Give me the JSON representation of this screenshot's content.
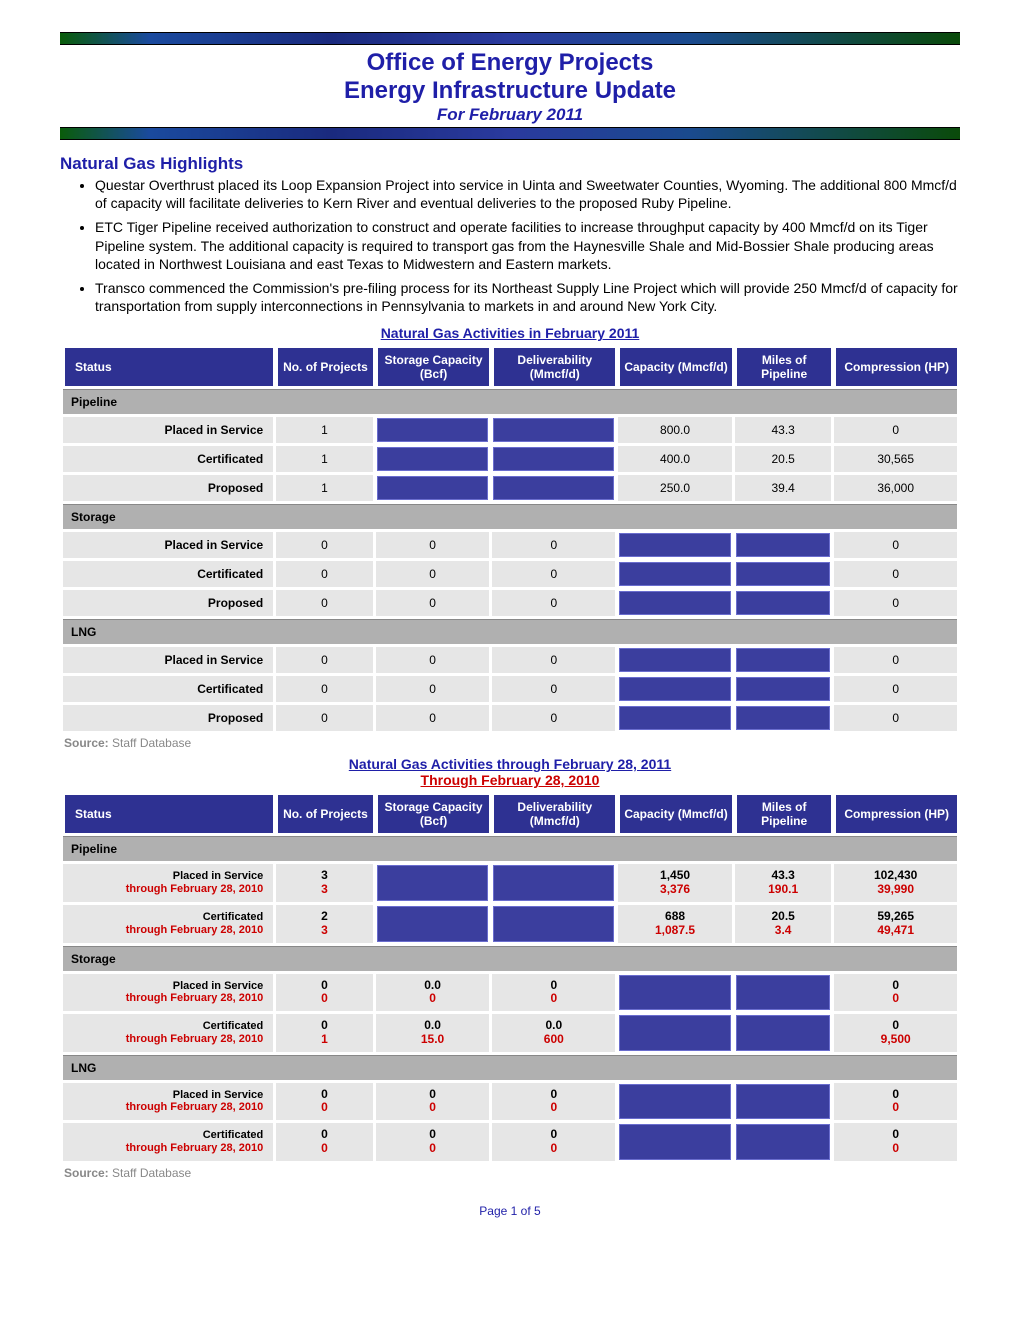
{
  "header": {
    "line1": "Office of Energy Projects",
    "line2": "Energy Infrastructure Update",
    "line3": "For February 2011"
  },
  "highlights": {
    "title": "Natural Gas Highlights",
    "items": [
      "Questar Overthrust placed its Loop Expansion Project into service in Uinta and Sweetwater Counties, Wyoming. The additional 800 Mmcf/d of capacity will facilitate deliveries to Kern River and eventual deliveries to the proposed Ruby Pipeline.",
      "ETC Tiger Pipeline received authorization to construct and operate facilities to increase throughput capacity by 400 Mmcf/d on its Tiger Pipeline system.  The additional capacity is required to transport gas from the Haynesville Shale and Mid-Bossier Shale producing areas located in Northwest Louisiana and east Texas to Midwestern and Eastern markets.",
      "Transco commenced the Commission's pre-filing process for its Northeast Supply Line Project which will provide 250 Mmcf/d of capacity for transportation from supply interconnections in Pennsylvania to markets in and around New York City."
    ]
  },
  "table1": {
    "caption": "Natural Gas Activities in February 2011",
    "columns": [
      "Status",
      "No. of Projects",
      "Storage Capacity (Bcf)",
      "Deliverability (Mmcf/d)",
      "Capacity (Mmcf/d)",
      "Miles of Pipeline",
      "Compression (HP)"
    ],
    "sections": [
      {
        "name": "Pipeline",
        "rows": [
          {
            "label": "Placed in Service",
            "cells": [
              "1",
              null,
              null,
              "800.0",
              "43.3",
              "0"
            ]
          },
          {
            "label": "Certificated",
            "cells": [
              "1",
              null,
              null,
              "400.0",
              "20.5",
              "30,565"
            ]
          },
          {
            "label": "Proposed",
            "cells": [
              "1",
              null,
              null,
              "250.0",
              "39.4",
              "36,000"
            ]
          }
        ]
      },
      {
        "name": "Storage",
        "rows": [
          {
            "label": "Placed in Service",
            "cells": [
              "0",
              "0",
              "0",
              null,
              null,
              "0"
            ]
          },
          {
            "label": "Certificated",
            "cells": [
              "0",
              "0",
              "0",
              null,
              null,
              "0"
            ]
          },
          {
            "label": "Proposed",
            "cells": [
              "0",
              "0",
              "0",
              null,
              null,
              "0"
            ]
          }
        ]
      },
      {
        "name": "LNG",
        "rows": [
          {
            "label": "Placed in Service",
            "cells": [
              "0",
              "0",
              "0",
              null,
              null,
              "0"
            ]
          },
          {
            "label": "Certificated",
            "cells": [
              "0",
              "0",
              "0",
              null,
              null,
              "0"
            ]
          },
          {
            "label": "Proposed",
            "cells": [
              "0",
              "0",
              "0",
              null,
              null,
              "0"
            ]
          }
        ]
      }
    ],
    "source_label": "Source:",
    "source_text": "Staff Database"
  },
  "table2": {
    "caption": "Natural Gas Activities through February 28, 2011",
    "sub_caption": "Through February 28, 2010",
    "prior_label": "through February 28, 2010",
    "columns": [
      "Status",
      "No. of Projects",
      "Storage Capacity (Bcf)",
      "Deliverability (Mmcf/d)",
      "Capacity (Mmcf/d)",
      "Miles of Pipeline",
      "Compression (HP)"
    ],
    "sections": [
      {
        "name": "Pipeline",
        "rows": [
          {
            "label": "Placed in Service",
            "cur": [
              "3",
              null,
              null,
              "1,450",
              "43.3",
              "102,430"
            ],
            "prev": [
              "3",
              null,
              null,
              "3,376",
              "190.1",
              "39,990"
            ]
          },
          {
            "label": "Certificated",
            "cur": [
              "2",
              null,
              null,
              "688",
              "20.5",
              "59,265"
            ],
            "prev": [
              "3",
              null,
              null,
              "1,087.5",
              "3.4",
              "49,471"
            ]
          }
        ]
      },
      {
        "name": "Storage",
        "rows": [
          {
            "label": "Placed in Service",
            "cur": [
              "0",
              "0.0",
              "0",
              null,
              null,
              "0"
            ],
            "prev": [
              "0",
              "0",
              "0",
              null,
              null,
              "0"
            ]
          },
          {
            "label": "Certificated",
            "cur": [
              "0",
              "0.0",
              "0.0",
              null,
              null,
              "0"
            ],
            "prev": [
              "1",
              "15.0",
              "600",
              null,
              null,
              "9,500"
            ]
          }
        ]
      },
      {
        "name": "LNG",
        "rows": [
          {
            "label": "Placed in Service",
            "cur": [
              "0",
              "0",
              "0",
              null,
              null,
              "0"
            ],
            "prev": [
              "0",
              "0",
              "0",
              null,
              null,
              "0"
            ]
          },
          {
            "label": "Certificated",
            "cur": [
              "0",
              "0",
              "0",
              null,
              null,
              "0"
            ],
            "prev": [
              "0",
              "0",
              "0",
              null,
              null,
              "0"
            ]
          }
        ]
      }
    ],
    "source_label": "Source:",
    "source_text": "Staff Database"
  },
  "footer": "Page 1 of 5",
  "style": {
    "header_bg": "#2e3192",
    "filled_cell": "#3b3e9e",
    "red": "#cc0000",
    "blue_text": "#1f1fa8",
    "col_widths_pct": [
      24,
      11,
      13,
      14,
      13,
      11,
      14
    ]
  }
}
